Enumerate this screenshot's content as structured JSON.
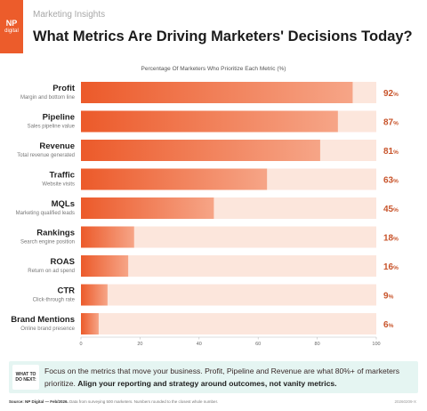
{
  "header": {
    "logo_np": "NP",
    "logo_digital": "digital",
    "section_label": "Marketing Insights",
    "title": "What Metrics Are Driving Marketers' Decisions Today?"
  },
  "chart_data": {
    "type": "bar",
    "orientation": "horizontal",
    "title": "What Metrics Are Driving Marketers' Decisions Today?",
    "subtitle": "Percentage Of Marketers Who Prioritize Each Metric (%)",
    "categories": [
      "Profit",
      "Pipeline",
      "Revenue",
      "Traffic",
      "MQLs",
      "Rankings",
      "ROAS",
      "CTR",
      "Brand Mentions"
    ],
    "descriptions": [
      "Margin and bottom line",
      "Sales pipeline value",
      "Total revenue generated",
      "Website visits",
      "Marketing qualified leads",
      "Search engine position",
      "Return on ad spend",
      "Click-through rate",
      "Online brand presence"
    ],
    "values": [
      92,
      87,
      81,
      63,
      45,
      18,
      16,
      9,
      6
    ],
    "value_suffix": "%",
    "xlim": [
      0,
      100
    ],
    "xticks": [
      0,
      20,
      40,
      60,
      80,
      100
    ],
    "grid": false,
    "colors": {
      "bar_start": "#ec5a2a",
      "bar_end": "#f6a587",
      "track": "#fce6dc",
      "value_text": "#c8542b"
    }
  },
  "callout": {
    "badge_line1": "WHAT TO",
    "badge_line2": "DO NEXT:",
    "text_plain": "Focus on the metrics that move your business. Profit, Pipeline and Revenue are what 80%+ of marketers prioritize. ",
    "text_bold": "Align your reporting and strategy around outcomes, not vanity metrics."
  },
  "footer": {
    "source_label": "Source:",
    "source_name": "NP Digital — Feb/2026.",
    "source_text": "Data from surveying 500 marketers. Numbers rounded to the closest whole number.",
    "code": "20260209-X"
  }
}
